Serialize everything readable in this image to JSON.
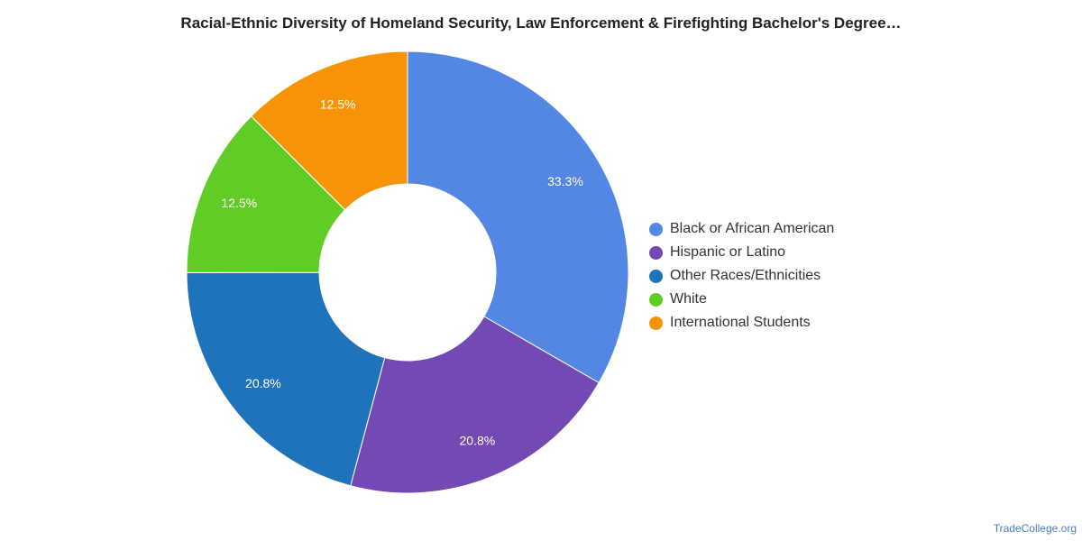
{
  "chart_data": {
    "type": "pie",
    "title": "Racial-Ethnic Diversity of Homeland Security, Law Enforcement & Firefighting Bachelor's Degree…",
    "donut": true,
    "legend_position": "right",
    "slices": [
      {
        "label": "Black or African American",
        "value": 33.3,
        "display": "33.3%",
        "color": "#5486e4"
      },
      {
        "label": "Hispanic or Latino",
        "value": 20.8,
        "display": "20.8%",
        "color": "#7349b3"
      },
      {
        "label": "Other Races/Ethnicities",
        "value": 20.8,
        "display": "20.8%",
        "color": "#1f73bb"
      },
      {
        "label": "White",
        "value": 12.5,
        "display": "12.5%",
        "color": "#62cc27"
      },
      {
        "label": "International Students",
        "value": 12.5,
        "display": "12.5%",
        "color": "#f79307"
      }
    ]
  },
  "source": "TradeCollege.org"
}
